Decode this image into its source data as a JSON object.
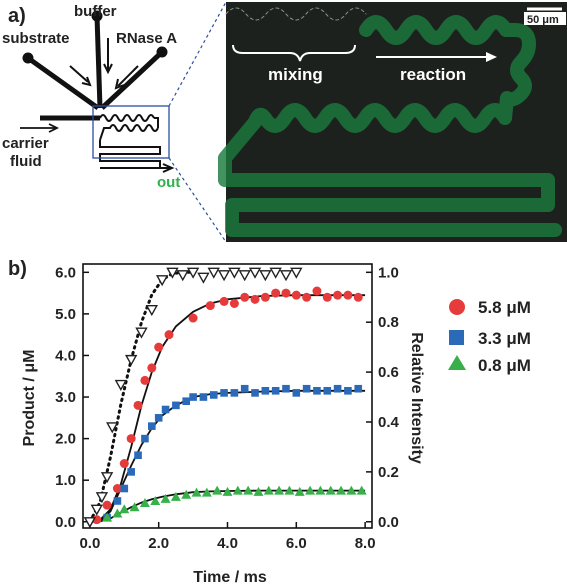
{
  "panel_a": {
    "label": "a)",
    "inlets": [
      "buffer",
      "substrate",
      "RNase A"
    ],
    "carrier_label_1": "carrier",
    "carrier_label_2": "fluid",
    "outlet_label": "out",
    "scale_bar_label": "50 μm",
    "mixing_label": "mixing",
    "reaction_label": "reaction",
    "colors": {
      "micrograph_bg": "#1d211d",
      "fluorescence": "#1fa14c",
      "out_text": "#2eb24a"
    }
  },
  "panel_b": {
    "label": "b)",
    "legend": [
      "5.8 μM",
      "3.3 μM",
      "0.8 μM"
    ]
  },
  "chart_data": {
    "type": "scatter",
    "xlabel": "Time / ms",
    "ylabel": "Product / μM",
    "y2label": "Relative Intensity",
    "xlim": [
      -0.2,
      8.2
    ],
    "ylim": [
      -0.15,
      6.2
    ],
    "y2lim": [
      -0.025,
      1.0333
    ],
    "xticks": [
      "0.0",
      "2.0",
      "4.0",
      "6.0",
      "8.0"
    ],
    "yticks": [
      "0.0",
      "1.0",
      "2.0",
      "3.0",
      "4.0",
      "5.0",
      "6.0"
    ],
    "y2ticks": [
      "0.0",
      "0.2",
      "0.4",
      "0.6",
      "0.8",
      "1.0"
    ],
    "series": [
      {
        "name": "5.8 μM",
        "marker": "circle",
        "color": "#e63b3b",
        "x": [
          0.2,
          0.5,
          0.8,
          1.0,
          1.2,
          1.4,
          1.6,
          1.8,
          2.0,
          2.3,
          3.0,
          3.5,
          3.9,
          4.2,
          4.5,
          4.8,
          5.1,
          5.4,
          5.7,
          6.0,
          6.3,
          6.6,
          6.9,
          7.2,
          7.5,
          7.8
        ],
        "y": [
          0.05,
          0.4,
          0.8,
          1.4,
          2.0,
          2.8,
          3.4,
          3.7,
          4.2,
          4.5,
          4.9,
          5.2,
          5.3,
          5.25,
          5.4,
          5.35,
          5.4,
          5.5,
          5.5,
          5.45,
          5.4,
          5.55,
          5.4,
          5.45,
          5.45,
          5.4
        ]
      },
      {
        "name": "3.3 μM",
        "marker": "square",
        "color": "#2a6ab8",
        "x": [
          0.5,
          0.8,
          1.0,
          1.2,
          1.4,
          1.6,
          1.8,
          2.0,
          2.2,
          2.5,
          2.8,
          3.0,
          3.3,
          3.6,
          3.9,
          4.2,
          4.5,
          4.8,
          5.1,
          5.4,
          5.7,
          6.0,
          6.3,
          6.6,
          6.9,
          7.2,
          7.5,
          7.8
        ],
        "y": [
          0.1,
          0.5,
          0.8,
          1.2,
          1.6,
          2.0,
          2.3,
          2.5,
          2.7,
          2.8,
          2.9,
          3.0,
          3.0,
          3.05,
          3.1,
          3.1,
          3.2,
          3.1,
          3.15,
          3.15,
          3.2,
          3.1,
          3.2,
          3.15,
          3.15,
          3.2,
          3.15,
          3.2
        ]
      },
      {
        "name": "0.8 μM",
        "marker": "triangle",
        "color": "#38b04a",
        "x": [
          0.5,
          0.8,
          1.0,
          1.3,
          1.6,
          1.9,
          2.2,
          2.5,
          2.8,
          3.1,
          3.4,
          3.7,
          4.0,
          4.3,
          4.6,
          4.9,
          5.2,
          5.5,
          5.8,
          6.1,
          6.4,
          6.7,
          7.0,
          7.3,
          7.6,
          7.9
        ],
        "y": [
          0.1,
          0.2,
          0.3,
          0.35,
          0.45,
          0.5,
          0.55,
          0.6,
          0.65,
          0.7,
          0.7,
          0.75,
          0.72,
          0.75,
          0.75,
          0.72,
          0.75,
          0.75,
          0.75,
          0.72,
          0.75,
          0.75,
          0.75,
          0.75,
          0.75,
          0.75
        ]
      },
      {
        "name": "",
        "marker": "triangle-down-open",
        "color": "#222222",
        "axis": "right",
        "x": [
          0.0,
          0.2,
          0.35,
          0.5,
          0.65,
          0.9,
          1.2,
          1.5,
          1.8,
          2.1,
          2.4,
          2.7,
          3.0,
          3.3,
          3.6,
          3.9,
          4.2,
          4.5,
          4.8,
          5.1,
          5.4,
          5.7,
          6.0
        ],
        "y": [
          0.0,
          0.05,
          0.1,
          0.18,
          0.38,
          0.55,
          0.65,
          0.76,
          0.85,
          0.97,
          1.0,
          0.99,
          1.0,
          0.98,
          1.0,
          0.99,
          1.0,
          0.99,
          1.0,
          0.99,
          1.0,
          0.99,
          1.0
        ]
      }
    ],
    "fits": [
      {
        "name": "5.8 μM fit",
        "style": "solid",
        "x": [
          0,
          0.3,
          0.6,
          0.9,
          1.2,
          1.5,
          1.8,
          2.1,
          2.5,
          3,
          3.5,
          4,
          5,
          6,
          7,
          8
        ],
        "y": [
          0,
          0.05,
          0.3,
          0.9,
          1.8,
          2.8,
          3.6,
          4.2,
          4.7,
          5.05,
          5.25,
          5.35,
          5.43,
          5.45,
          5.45,
          5.45
        ]
      },
      {
        "name": "3.3 μM fit",
        "style": "solid",
        "x": [
          0,
          0.3,
          0.6,
          0.9,
          1.2,
          1.5,
          1.8,
          2.1,
          2.5,
          3,
          3.5,
          4,
          5,
          6,
          7,
          8
        ],
        "y": [
          0,
          0.02,
          0.25,
          0.8,
          1.35,
          1.85,
          2.25,
          2.55,
          2.8,
          3.0,
          3.07,
          3.1,
          3.13,
          3.15,
          3.15,
          3.15
        ]
      },
      {
        "name": "0.8 μM fit",
        "style": "solid",
        "x": [
          0,
          0.3,
          0.6,
          0.9,
          1.2,
          1.5,
          1.8,
          2.1,
          2.5,
          3,
          3.5,
          4,
          5,
          6,
          7,
          8
        ],
        "y": [
          0,
          0.01,
          0.08,
          0.22,
          0.35,
          0.46,
          0.54,
          0.6,
          0.66,
          0.71,
          0.73,
          0.74,
          0.75,
          0.75,
          0.75,
          0.75
        ]
      },
      {
        "name": "intensity fit",
        "style": "dotted",
        "axis": "right",
        "x": [
          0,
          0.3,
          0.6,
          0.9,
          1.2,
          1.5,
          1.8,
          2.1,
          2.4,
          2.7,
          3.0
        ],
        "y": [
          0,
          0.08,
          0.26,
          0.47,
          0.65,
          0.8,
          0.91,
          0.97,
          0.995,
          1.0,
          1.0
        ]
      }
    ]
  }
}
